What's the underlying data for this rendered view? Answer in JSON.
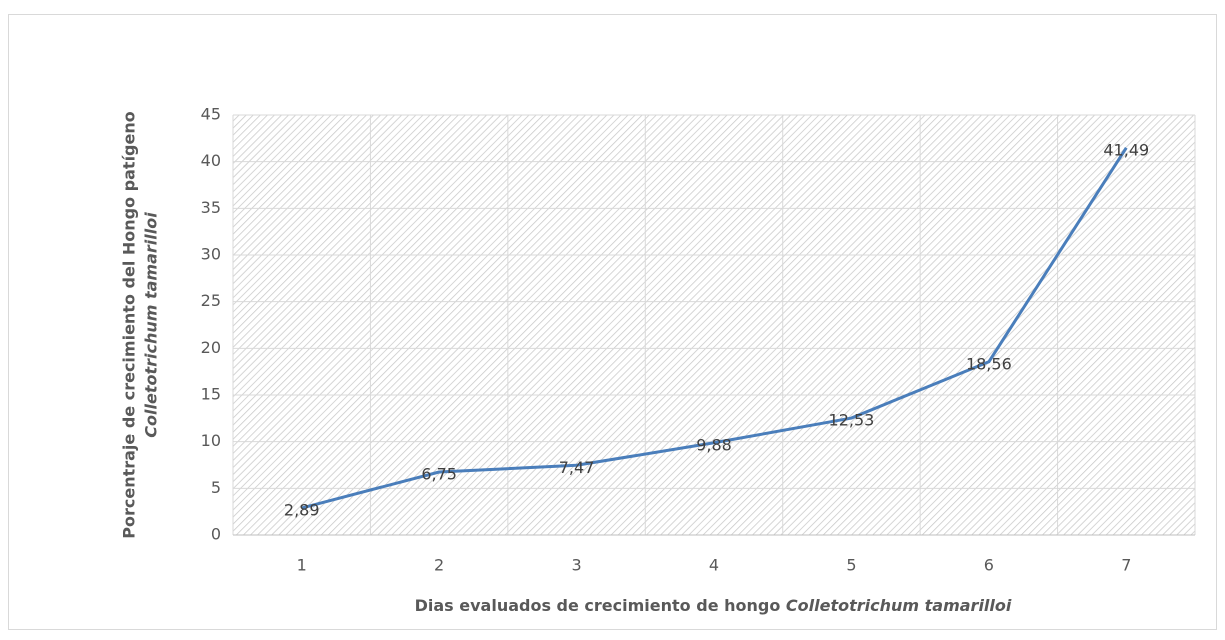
{
  "chart_data": {
    "type": "line",
    "categories": [
      "1",
      "2",
      "3",
      "4",
      "5",
      "6",
      "7"
    ],
    "values": [
      2.89,
      6.75,
      7.47,
      9.88,
      12.53,
      18.56,
      41.49
    ],
    "value_labels": [
      "2,89",
      "6,75",
      "7,47",
      "9,88",
      "12,53",
      "18,56",
      "41,49"
    ],
    "color": "#4a7ebb",
    "ylim": [
      0,
      45
    ],
    "yticks": [
      0,
      5,
      10,
      15,
      20,
      25,
      30,
      35,
      40,
      45
    ],
    "grid": true,
    "y_label": "Porcentraje de crecimiento del Hongo patígeno",
    "y_label_italic": "Colletotrichum tamarilloi",
    "x_label": "Dias evaluados de crecimiento de hongo",
    "x_label_italic": "Colletotrichum tamarilloi"
  }
}
